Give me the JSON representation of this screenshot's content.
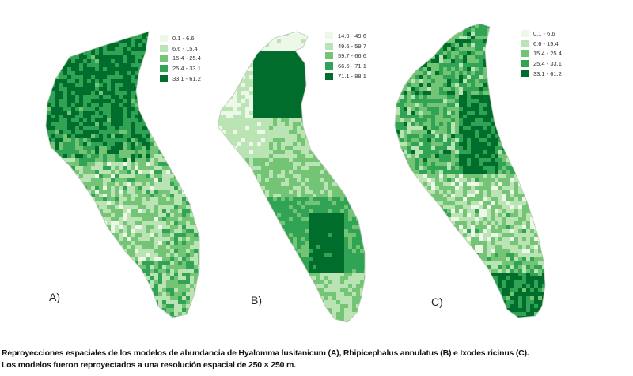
{
  "panels": [
    {
      "label": "A)",
      "legend": [
        "0.1 - 6.6",
        "6.6 - 15.4",
        "15.4 - 25.4",
        "25.4 - 33.1",
        "33.1 - 61.2"
      ]
    },
    {
      "label": "B)",
      "legend": [
        "14.9 - 49.6",
        "49.6 - 59.7",
        "59.7 - 66.6",
        "66.6 - 71.1",
        "71.1 - 88.1"
      ]
    },
    {
      "label": "C)",
      "legend": [
        "0.1 - 6.6",
        "6.6 - 15.4",
        "15.4 - 25.4",
        "25.4 - 33.1",
        "33.1 - 61.2"
      ]
    }
  ],
  "palette": [
    "#edf8e9",
    "#bae4b3",
    "#74c476",
    "#31a354",
    "#006d2c"
  ],
  "caption": {
    "line1": "Reproyecciones espaciales de los modelos de abundancia de Hyalomma lusitanicum (A), Rhipicephalus annulatus (B) e Ixodes ricinus (C).",
    "line2": "Los modelos fueron reproyectados a una resolución espacial de 250 × 250 m."
  }
}
